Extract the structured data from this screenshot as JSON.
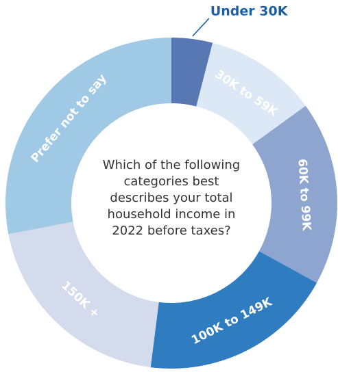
{
  "chart_data": {
    "type": "donut",
    "title": "Which of the following categories best describes your total household income in 2022 before taxes?",
    "categories": [
      "Under 30K",
      "30K to 59K",
      "60K to 99K",
      "100K to 149K",
      "150K +",
      "Prefer not to say"
    ],
    "values": [
      4,
      11,
      18,
      19,
      20,
      28
    ],
    "colors": [
      "#5878b3",
      "#dce8f5",
      "#8ea5cf",
      "#2f7cc1",
      "#d4dbec",
      "#9fc9e4"
    ],
    "outside_label": [
      true,
      false,
      false,
      false,
      false,
      false
    ]
  }
}
